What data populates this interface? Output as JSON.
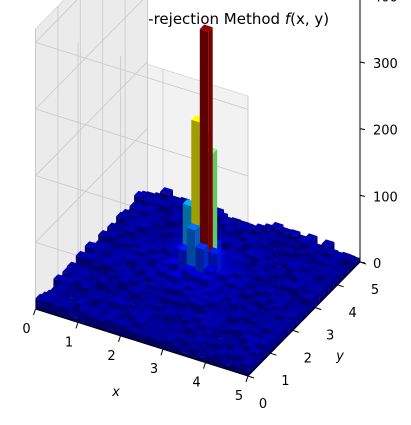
{
  "chart_data": {
    "type": "bar3d",
    "title_prefix": "Acceptance-rejection Method ",
    "title_func": "f",
    "title_args": "(x, y)",
    "xlabel": "x",
    "ylabel": "y",
    "xlim": [
      0,
      5
    ],
    "ylim": [
      0,
      5
    ],
    "zlim": [
      0,
      420
    ],
    "x_ticks": [
      "0",
      "1",
      "2",
      "3",
      "4",
      "5"
    ],
    "y_ticks": [
      "0",
      "1",
      "2",
      "3",
      "4",
      "5"
    ],
    "z_ticks": [
      "0",
      "100",
      "200",
      "300",
      "400"
    ],
    "colormap": "jet",
    "grid": true,
    "grid_bins": 25,
    "peak_center": [
      2.5,
      2.5
    ],
    "background_counts": [
      5,
      20
    ],
    "columns": [
      {
        "x": 2.2,
        "y": 2.0,
        "z": 30
      },
      {
        "x": 2.4,
        "y": 2.0,
        "z": 40
      },
      {
        "x": 2.6,
        "y": 2.0,
        "z": 35
      },
      {
        "x": 2.2,
        "y": 2.2,
        "z": 60
      },
      {
        "x": 2.4,
        "y": 2.2,
        "z": 95
      },
      {
        "x": 2.6,
        "y": 2.2,
        "z": 70
      },
      {
        "x": 2.8,
        "y": 2.2,
        "z": 40
      },
      {
        "x": 2.0,
        "y": 2.4,
        "z": 50
      },
      {
        "x": 2.2,
        "y": 2.4,
        "z": 120
      },
      {
        "x": 2.4,
        "y": 2.4,
        "z": 250
      },
      {
        "x": 2.6,
        "y": 2.4,
        "z": 390
      },
      {
        "x": 2.8,
        "y": 2.4,
        "z": 60
      },
      {
        "x": 2.2,
        "y": 2.6,
        "z": 110
      },
      {
        "x": 2.4,
        "y": 2.6,
        "z": 220
      },
      {
        "x": 2.6,
        "y": 2.6,
        "z": 200
      },
      {
        "x": 2.8,
        "y": 2.6,
        "z": 50
      },
      {
        "x": 2.2,
        "y": 2.8,
        "z": 45
      },
      {
        "x": 2.4,
        "y": 2.8,
        "z": 80
      },
      {
        "x": 2.6,
        "y": 2.8,
        "z": 55
      }
    ]
  }
}
